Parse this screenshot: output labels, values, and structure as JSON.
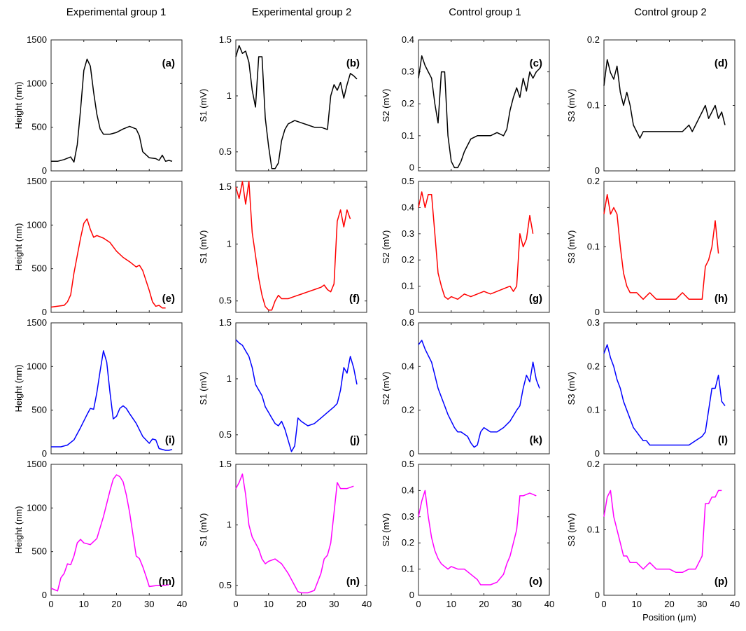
{
  "figure": {
    "column_titles": [
      "Experimental group 1",
      "Experimental group 2",
      "Control group 1",
      "Control group 2"
    ],
    "xlabel": "Position (μm)",
    "row_ylabels": [
      "Height (nm)",
      "S1 (mV)",
      "S2 (mV)",
      "S3 (mV)"
    ]
  },
  "colors": {
    "height": "#000000",
    "s1": "#ff0000",
    "s2": "#0000ff",
    "s3": "#ff00ff"
  },
  "chart_data": [
    {
      "type": "line",
      "panel": "(a)",
      "group": "Experimental group 1",
      "ylabel": "Height (nm)",
      "xlabel": "",
      "xlim": [
        0,
        40
      ],
      "ylim": [
        0,
        1500
      ],
      "xticks": [
        0,
        10,
        20,
        30,
        40
      ],
      "yticks": [
        0,
        500,
        1000,
        1500
      ],
      "x": [
        0,
        2,
        4,
        6,
        7,
        8,
        9,
        10,
        11,
        12,
        13,
        14,
        15,
        16,
        18,
        20,
        22,
        24,
        26,
        27,
        28,
        30,
        32,
        33,
        34,
        35,
        36,
        37
      ],
      "values": [
        110,
        110,
        130,
        160,
        100,
        300,
        700,
        1150,
        1280,
        1200,
        900,
        650,
        480,
        420,
        420,
        440,
        480,
        510,
        480,
        400,
        220,
        150,
        140,
        120,
        180,
        110,
        120,
        110
      ]
    },
    {
      "type": "line",
      "panel": "(e)",
      "group": "Experimental group 2",
      "ylabel": "Height (nm)",
      "xlabel": "",
      "xlim": [
        0,
        40
      ],
      "ylim": [
        0,
        1500
      ],
      "xticks": [
        0,
        10,
        20,
        30,
        40
      ],
      "yticks": [
        0,
        500,
        1000,
        1500
      ],
      "x": [
        0,
        2,
        4,
        5,
        6,
        7,
        8,
        9,
        10,
        11,
        12,
        13,
        14,
        16,
        18,
        20,
        22,
        24,
        26,
        27,
        28,
        30,
        31,
        32,
        33,
        34,
        35
      ],
      "values": [
        60,
        70,
        80,
        120,
        200,
        450,
        650,
        850,
        1020,
        1070,
        950,
        860,
        880,
        850,
        800,
        700,
        630,
        580,
        520,
        540,
        480,
        250,
        120,
        70,
        80,
        50,
        50
      ]
    },
    {
      "type": "line",
      "panel": "(i)",
      "group": "Control group 1",
      "ylabel": "Height (nm)",
      "xlabel": "",
      "xlim": [
        0,
        40
      ],
      "ylim": [
        0,
        1500
      ],
      "xticks": [
        0,
        10,
        20,
        30,
        40
      ],
      "yticks": [
        0,
        500,
        1000,
        1500
      ],
      "x": [
        0,
        3,
        5,
        7,
        9,
        11,
        12,
        13,
        14,
        15,
        16,
        17,
        18,
        19,
        20,
        21,
        22,
        23,
        24,
        26,
        28,
        30,
        31,
        32,
        33,
        35,
        36,
        37
      ],
      "values": [
        80,
        80,
        100,
        160,
        300,
        450,
        520,
        510,
        700,
        950,
        1180,
        1050,
        700,
        400,
        430,
        520,
        550,
        520,
        460,
        350,
        200,
        120,
        170,
        160,
        60,
        40,
        40,
        50
      ]
    },
    {
      "type": "line",
      "panel": "(m)",
      "group": "Control group 2",
      "ylabel": "Height (nm)",
      "xlabel": "",
      "xlim": [
        0,
        40
      ],
      "ylim": [
        0,
        1500
      ],
      "xticks": [
        0,
        10,
        20,
        30,
        40
      ],
      "yticks": [
        0,
        500,
        1000,
        1500
      ],
      "x": [
        0,
        2,
        3,
        4,
        5,
        6,
        7,
        8,
        9,
        10,
        12,
        14,
        16,
        18,
        19,
        20,
        21,
        22,
        23,
        24,
        25,
        26,
        27,
        28,
        29,
        30,
        32,
        34,
        36
      ],
      "values": [
        80,
        50,
        200,
        250,
        360,
        350,
        450,
        600,
        640,
        600,
        580,
        650,
        900,
        1200,
        1330,
        1380,
        1360,
        1300,
        1150,
        950,
        700,
        450,
        420,
        330,
        220,
        100,
        110,
        110,
        120
      ]
    },
    {
      "type": "line",
      "panel": "(b)",
      "group": "Experimental group 1",
      "ylabel": "S1 (mV)",
      "xlabel": "",
      "xlim": [
        0,
        40
      ],
      "ylim": [
        0.33,
        1.5
      ],
      "xticks": [
        0,
        10,
        20,
        30,
        40
      ],
      "yticks": [
        0.5,
        1,
        1.5
      ],
      "x": [
        0,
        1,
        2,
        3,
        4,
        5,
        6,
        7,
        8,
        9,
        10,
        11,
        12,
        13,
        14,
        15,
        16,
        18,
        20,
        22,
        24,
        26,
        28,
        29,
        30,
        31,
        32,
        33,
        34,
        35,
        36,
        37
      ],
      "values": [
        1.35,
        1.45,
        1.38,
        1.4,
        1.3,
        1.05,
        0.9,
        1.35,
        1.35,
        0.8,
        0.55,
        0.35,
        0.35,
        0.4,
        0.6,
        0.7,
        0.75,
        0.78,
        0.76,
        0.74,
        0.72,
        0.72,
        0.7,
        1.0,
        1.1,
        1.05,
        1.12,
        0.98,
        1.1,
        1.2,
        1.18,
        1.15
      ]
    },
    {
      "type": "line",
      "panel": "(f)",
      "group": "Experimental group 2",
      "ylabel": "S1 (mV)",
      "xlabel": "",
      "xlim": [
        0,
        40
      ],
      "ylim": [
        0.4,
        1.55
      ],
      "xticks": [
        0,
        10,
        20,
        30,
        40
      ],
      "yticks": [
        0.5,
        1,
        1.5
      ],
      "x": [
        0,
        1,
        2,
        3,
        4,
        5,
        6,
        7,
        8,
        9,
        10,
        11,
        12,
        13,
        14,
        16,
        18,
        20,
        22,
        24,
        26,
        27,
        28,
        29,
        30,
        31,
        32,
        33,
        34,
        35
      ],
      "values": [
        1.5,
        1.4,
        1.55,
        1.35,
        1.55,
        1.1,
        0.9,
        0.7,
        0.55,
        0.45,
        0.42,
        0.42,
        0.5,
        0.55,
        0.52,
        0.52,
        0.54,
        0.56,
        0.58,
        0.6,
        0.62,
        0.64,
        0.6,
        0.58,
        0.65,
        1.2,
        1.3,
        1.15,
        1.3,
        1.22
      ]
    },
    {
      "type": "line",
      "panel": "(j)",
      "group": "Control group 1",
      "ylabel": "S1 (mV)",
      "xlabel": "",
      "xlim": [
        0,
        40
      ],
      "ylim": [
        0.33,
        1.5
      ],
      "xticks": [
        0,
        10,
        20,
        30,
        40
      ],
      "yticks": [
        0.5,
        1,
        1.5
      ],
      "x": [
        0,
        1,
        2,
        3,
        4,
        5,
        6,
        7,
        8,
        9,
        10,
        11,
        12,
        13,
        14,
        15,
        16,
        17,
        18,
        19,
        20,
        22,
        24,
        26,
        28,
        30,
        31,
        32,
        33,
        34,
        35,
        36,
        37
      ],
      "values": [
        1.35,
        1.32,
        1.3,
        1.25,
        1.2,
        1.1,
        0.95,
        0.9,
        0.85,
        0.75,
        0.7,
        0.65,
        0.6,
        0.58,
        0.62,
        0.55,
        0.45,
        0.35,
        0.4,
        0.65,
        0.62,
        0.58,
        0.6,
        0.65,
        0.7,
        0.75,
        0.78,
        0.9,
        1.1,
        1.05,
        1.2,
        1.1,
        0.95
      ]
    },
    {
      "type": "line",
      "panel": "(n)",
      "group": "Control group 2",
      "ylabel": "S1 (mV)",
      "xlabel": "",
      "xlim": [
        0,
        40
      ],
      "ylim": [
        0.42,
        1.5
      ],
      "xticks": [
        0,
        10,
        20,
        30,
        40
      ],
      "yticks": [
        0.5,
        1,
        1.5
      ],
      "x": [
        0,
        1,
        2,
        3,
        4,
        5,
        6,
        7,
        8,
        9,
        10,
        12,
        14,
        16,
        18,
        19,
        20,
        22,
        24,
        26,
        27,
        28,
        29,
        30,
        31,
        32,
        34,
        36
      ],
      "values": [
        1.3,
        1.35,
        1.42,
        1.25,
        1.0,
        0.9,
        0.85,
        0.8,
        0.72,
        0.68,
        0.7,
        0.72,
        0.68,
        0.6,
        0.5,
        0.45,
        0.44,
        0.44,
        0.46,
        0.6,
        0.72,
        0.75,
        0.85,
        1.1,
        1.35,
        1.3,
        1.3,
        1.32
      ]
    },
    {
      "type": "line",
      "panel": "(c)",
      "group": "Experimental group 1",
      "ylabel": "S2 (mV)",
      "xlabel": "",
      "xlim": [
        0,
        40
      ],
      "ylim": [
        -0.01,
        0.4
      ],
      "xticks": [
        0,
        10,
        20,
        30,
        40
      ],
      "yticks": [
        0,
        0.1,
        0.2,
        0.3,
        0.4
      ],
      "x": [
        0,
        1,
        2,
        3,
        4,
        5,
        6,
        7,
        8,
        9,
        10,
        11,
        12,
        13,
        14,
        15,
        16,
        18,
        20,
        22,
        24,
        26,
        27,
        28,
        29,
        30,
        31,
        32,
        33,
        34,
        35,
        36,
        37
      ],
      "values": [
        0.28,
        0.35,
        0.32,
        0.3,
        0.28,
        0.2,
        0.14,
        0.3,
        0.3,
        0.1,
        0.02,
        0.0,
        0.0,
        0.02,
        0.05,
        0.07,
        0.09,
        0.1,
        0.1,
        0.1,
        0.11,
        0.1,
        0.12,
        0.18,
        0.22,
        0.25,
        0.22,
        0.28,
        0.24,
        0.3,
        0.28,
        0.3,
        0.31
      ]
    },
    {
      "type": "line",
      "panel": "(g)",
      "group": "Experimental group 2",
      "ylabel": "S2 (mV)",
      "xlabel": "",
      "xlim": [
        0,
        40
      ],
      "ylim": [
        0,
        0.5
      ],
      "xticks": [
        0,
        10,
        20,
        30,
        40
      ],
      "yticks": [
        0,
        0.1,
        0.2,
        0.3,
        0.4,
        0.5
      ],
      "x": [
        0,
        1,
        2,
        3,
        4,
        5,
        6,
        7,
        8,
        9,
        10,
        12,
        14,
        16,
        18,
        20,
        22,
        24,
        26,
        28,
        29,
        30,
        31,
        32,
        33,
        34,
        35
      ],
      "values": [
        0.4,
        0.46,
        0.4,
        0.45,
        0.45,
        0.3,
        0.15,
        0.1,
        0.06,
        0.05,
        0.06,
        0.05,
        0.07,
        0.06,
        0.07,
        0.08,
        0.07,
        0.08,
        0.09,
        0.1,
        0.08,
        0.1,
        0.3,
        0.25,
        0.28,
        0.37,
        0.3
      ]
    },
    {
      "type": "line",
      "panel": "(k)",
      "group": "Control group 1",
      "ylabel": "S2 (mV)",
      "xlabel": "",
      "xlim": [
        0,
        40
      ],
      "ylim": [
        0,
        0.6
      ],
      "xticks": [
        0,
        10,
        20,
        30,
        40
      ],
      "yticks": [
        0,
        0.2,
        0.4,
        0.6
      ],
      "x": [
        0,
        1,
        2,
        3,
        4,
        5,
        6,
        7,
        8,
        9,
        10,
        11,
        12,
        13,
        14,
        15,
        16,
        17,
        18,
        19,
        20,
        22,
        24,
        26,
        28,
        30,
        31,
        32,
        33,
        34,
        35,
        36,
        37
      ],
      "values": [
        0.5,
        0.52,
        0.48,
        0.45,
        0.42,
        0.36,
        0.3,
        0.26,
        0.22,
        0.18,
        0.15,
        0.12,
        0.1,
        0.1,
        0.09,
        0.08,
        0.05,
        0.03,
        0.04,
        0.1,
        0.12,
        0.1,
        0.1,
        0.12,
        0.15,
        0.2,
        0.22,
        0.3,
        0.36,
        0.33,
        0.42,
        0.34,
        0.3
      ]
    },
    {
      "type": "line",
      "panel": "(o)",
      "group": "Control group 2",
      "ylabel": "S2 (mV)",
      "xlabel": "",
      "xlim": [
        0,
        40
      ],
      "ylim": [
        0,
        0.5
      ],
      "xticks": [
        0,
        10,
        20,
        30,
        40
      ],
      "yticks": [
        0,
        0.1,
        0.2,
        0.3,
        0.4,
        0.5
      ],
      "x": [
        0,
        1,
        2,
        3,
        4,
        5,
        6,
        7,
        8,
        9,
        10,
        12,
        14,
        16,
        18,
        19,
        20,
        22,
        24,
        26,
        27,
        28,
        29,
        30,
        31,
        32,
        34,
        36
      ],
      "values": [
        0.3,
        0.36,
        0.4,
        0.3,
        0.22,
        0.17,
        0.14,
        0.12,
        0.11,
        0.1,
        0.11,
        0.1,
        0.1,
        0.08,
        0.06,
        0.04,
        0.04,
        0.04,
        0.05,
        0.08,
        0.12,
        0.15,
        0.2,
        0.25,
        0.38,
        0.38,
        0.39,
        0.38
      ]
    },
    {
      "type": "line",
      "panel": "(d)",
      "group": "Experimental group 1",
      "ylabel": "S3 (mV)",
      "xlabel": "Position (μm)",
      "xlim": [
        0,
        40
      ],
      "ylim": [
        0,
        0.2
      ],
      "xticks": [
        0,
        10,
        20,
        30,
        40
      ],
      "yticks": [
        0,
        0.1,
        0.2
      ],
      "x": [
        0,
        1,
        2,
        3,
        4,
        5,
        6,
        7,
        8,
        9,
        10,
        11,
        12,
        14,
        16,
        18,
        20,
        22,
        24,
        26,
        27,
        28,
        29,
        30,
        31,
        32,
        33,
        34,
        35,
        36,
        37
      ],
      "values": [
        0.13,
        0.17,
        0.15,
        0.14,
        0.16,
        0.12,
        0.1,
        0.12,
        0.1,
        0.07,
        0.06,
        0.05,
        0.06,
        0.06,
        0.06,
        0.06,
        0.06,
        0.06,
        0.06,
        0.07,
        0.06,
        0.07,
        0.08,
        0.09,
        0.1,
        0.08,
        0.09,
        0.1,
        0.08,
        0.09,
        0.07
      ]
    },
    {
      "type": "line",
      "panel": "(h)",
      "group": "Experimental group 2",
      "ylabel": "S3 (mV)",
      "xlabel": "Position (μm)",
      "xlim": [
        0,
        40
      ],
      "ylim": [
        0,
        0.2
      ],
      "xticks": [
        0,
        10,
        20,
        30,
        40
      ],
      "yticks": [
        0,
        0.1,
        0.2
      ],
      "x": [
        0,
        1,
        2,
        3,
        4,
        5,
        6,
        7,
        8,
        9,
        10,
        12,
        14,
        16,
        18,
        20,
        22,
        24,
        26,
        28,
        29,
        30,
        31,
        32,
        33,
        34,
        35
      ],
      "values": [
        0.15,
        0.18,
        0.15,
        0.16,
        0.15,
        0.1,
        0.06,
        0.04,
        0.03,
        0.03,
        0.03,
        0.02,
        0.03,
        0.02,
        0.02,
        0.02,
        0.02,
        0.03,
        0.02,
        0.02,
        0.02,
        0.02,
        0.07,
        0.08,
        0.1,
        0.14,
        0.09
      ]
    },
    {
      "type": "line",
      "panel": "(l)",
      "group": "Control group 1",
      "ylabel": "S3 (mV)",
      "xlabel": "Position (μm)",
      "xlim": [
        0,
        40
      ],
      "ylim": [
        0,
        0.3
      ],
      "xticks": [
        0,
        10,
        20,
        30,
        40
      ],
      "yticks": [
        0,
        0.1,
        0.2,
        0.3
      ],
      "x": [
        0,
        1,
        2,
        3,
        4,
        5,
        6,
        7,
        8,
        9,
        10,
        11,
        12,
        13,
        14,
        16,
        18,
        20,
        22,
        24,
        26,
        28,
        30,
        31,
        32,
        33,
        34,
        35,
        36,
        37
      ],
      "values": [
        0.23,
        0.25,
        0.22,
        0.2,
        0.17,
        0.15,
        0.12,
        0.1,
        0.08,
        0.06,
        0.05,
        0.04,
        0.03,
        0.03,
        0.02,
        0.02,
        0.02,
        0.02,
        0.02,
        0.02,
        0.02,
        0.03,
        0.04,
        0.05,
        0.1,
        0.15,
        0.15,
        0.18,
        0.12,
        0.11
      ]
    },
    {
      "type": "line",
      "panel": "(p)",
      "group": "Control group 2",
      "ylabel": "S3 (mV)",
      "xlabel": "Position (μm)",
      "xlim": [
        0,
        40
      ],
      "ylim": [
        0,
        0.2
      ],
      "xticks": [
        0,
        10,
        20,
        30,
        40
      ],
      "yticks": [
        0,
        0.1,
        0.2
      ],
      "x": [
        0,
        1,
        2,
        3,
        4,
        5,
        6,
        7,
        8,
        10,
        12,
        14,
        16,
        18,
        20,
        22,
        24,
        26,
        28,
        29,
        30,
        31,
        32,
        33,
        34,
        35,
        36
      ],
      "values": [
        0.12,
        0.15,
        0.16,
        0.12,
        0.1,
        0.08,
        0.06,
        0.06,
        0.05,
        0.05,
        0.04,
        0.05,
        0.04,
        0.04,
        0.04,
        0.035,
        0.035,
        0.04,
        0.04,
        0.05,
        0.06,
        0.14,
        0.14,
        0.15,
        0.15,
        0.16,
        0.16
      ]
    }
  ]
}
